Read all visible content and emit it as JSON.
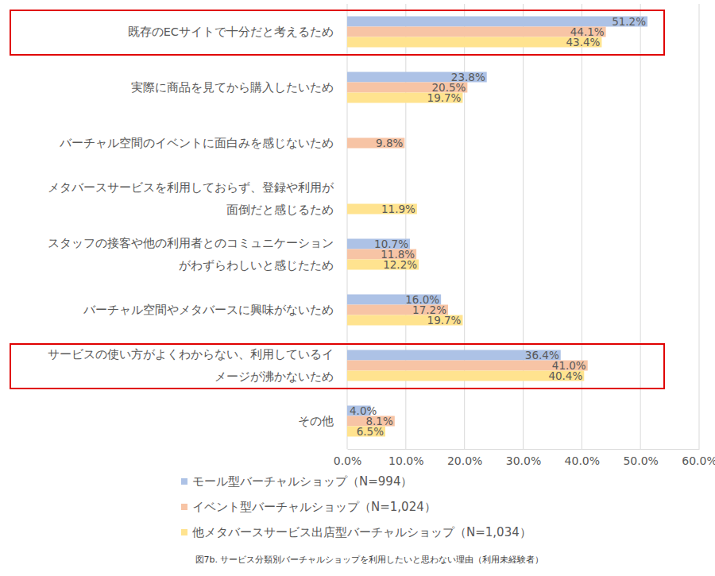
{
  "chart_data": {
    "type": "bar",
    "title": "図7b. サービス分類別バーチャルショップを利用したいと思わない理由（利用未経験者）",
    "orientation": "horizontal",
    "grid": true,
    "legend": "bottom",
    "data_labels": true,
    "categories": [
      "既存のECサイトで十分だと考えるため",
      "実際に商品を見てから購入したいため",
      "バーチャル空間のイベントに面白みを感じないため",
      "メタバースサービスを利用しておらず、登録や利用が\n面倒だと感じるため",
      "スタッフの接客や他の利用者とのコミュニケーション\nがわずらわしいと感じたため",
      "バーチャル空間やメタバースに興味がないため",
      "サービスの使い方がよくわからない、利用しているイ\nメージが沸かないため",
      "その他"
    ],
    "xlim": [
      0,
      60
    ],
    "xticks": [
      {
        "value": 0,
        "label": "0.0%"
      },
      {
        "value": 10,
        "label": "10.0%"
      },
      {
        "value": 20,
        "label": "20.0%"
      },
      {
        "value": 30,
        "label": "30.0%"
      },
      {
        "value": 40,
        "label": "40.0%"
      },
      {
        "value": 50,
        "label": "50.0%"
      },
      {
        "value": 60,
        "label": "60.0%"
      }
    ],
    "series": [
      {
        "name": "モール型バーチャルショップ（N=994）",
        "color": "#adc2e6",
        "values": [
          51.2,
          23.8,
          null,
          null,
          10.7,
          16.0,
          36.4,
          4.0
        ],
        "value_labels": [
          "51.2%",
          "23.8%",
          null,
          null,
          "10.7%",
          "16.0%",
          "36.4%",
          "4.0%"
        ]
      },
      {
        "name": "イベント型バーチャルショップ（N=1,024）",
        "color": "#f7c4a5",
        "values": [
          44.1,
          20.5,
          9.8,
          null,
          11.8,
          17.2,
          41.0,
          8.1
        ],
        "value_labels": [
          "44.1%",
          "20.5%",
          "9.8%",
          null,
          "11.8%",
          "17.2%",
          "41.0%",
          "8.1%"
        ]
      },
      {
        "name": "他メタバースサービス出店型バーチャルショップ（N=1,034）",
        "color": "#ffe38f",
        "values": [
          43.4,
          19.7,
          null,
          11.9,
          12.2,
          19.7,
          40.4,
          6.5
        ],
        "value_labels": [
          "43.4%",
          "19.7%",
          null,
          "11.9%",
          "12.2%",
          "19.7%",
          "40.4%",
          "6.5%"
        ]
      }
    ]
  }
}
